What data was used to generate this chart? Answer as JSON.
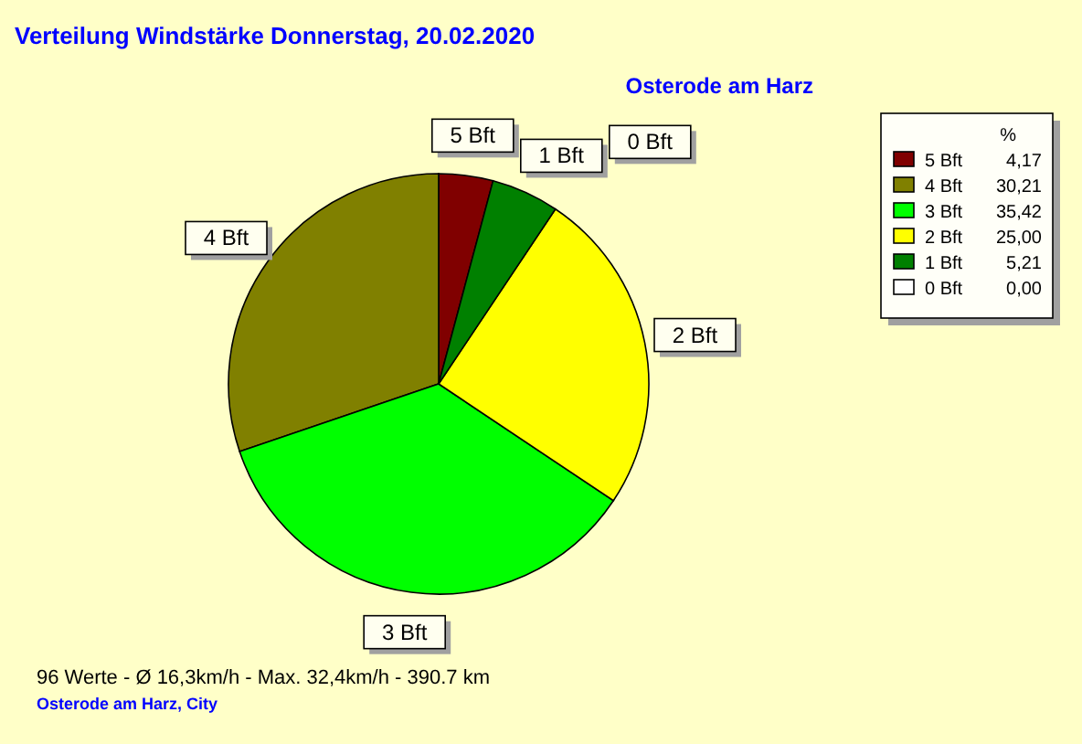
{
  "chart_data": {
    "type": "pie",
    "title": "Verteilung Windstärke  Donnerstag, 20.02.2020",
    "subtitle": "Osterode am Harz",
    "legend_title": "%",
    "categories": [
      "5 Bft",
      "4 Bft",
      "3 Bft",
      "2 Bft",
      "1 Bft",
      "0 Bft"
    ],
    "values": [
      4.17,
      30.21,
      35.42,
      25.0,
      5.21,
      0.0
    ],
    "value_labels": [
      "4,17",
      "30,21",
      "35,42",
      "25,00",
      "5,21",
      "0,00"
    ],
    "colors": [
      "#800000",
      "#808000",
      "#00ff00",
      "#ffff00",
      "#008000",
      "#ffffff"
    ],
    "legend": "top right",
    "annotations": [
      "96 Werte   -   Ø 16,3km/h  -  Max. 32,4km/h   -   390.7 km",
      "Osterode am Harz, City"
    ]
  }
}
